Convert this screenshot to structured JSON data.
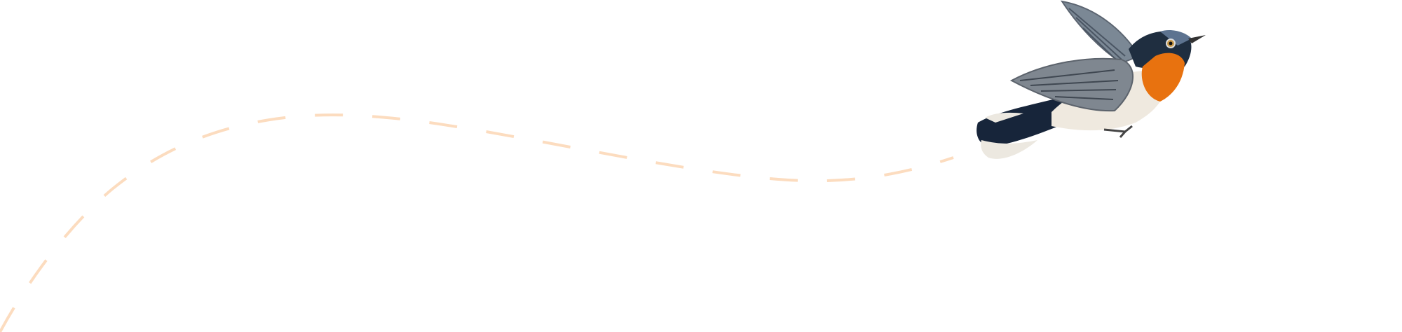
{
  "illustration": {
    "subject": "bird-in-flight",
    "flight_path_style": "dashed",
    "colors": {
      "background": "#ffffff",
      "flight_path": "#fcdcbf",
      "bird_throat": "#e8720f",
      "bird_head": "#1f2e40",
      "bird_wing": "#7f8790",
      "bird_belly": "#efe9df",
      "bird_tail": "#17253a"
    }
  }
}
